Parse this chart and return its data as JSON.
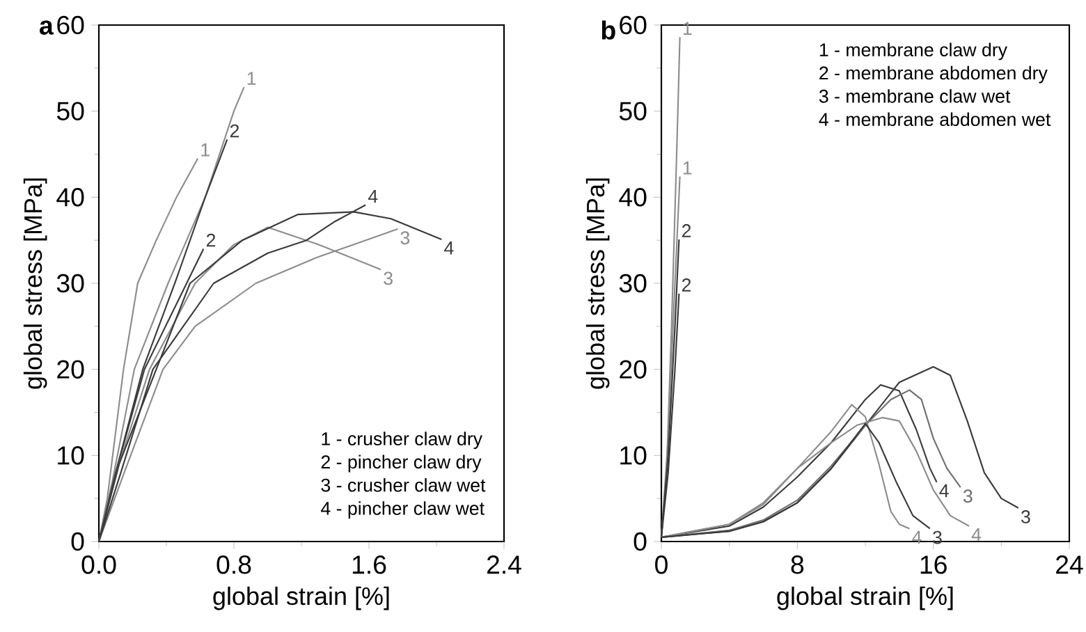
{
  "chart_data": [
    {
      "type": "line",
      "title": "a",
      "xlabel": "global strain [%]",
      "ylabel": "global stress [MPa]",
      "xlim": [
        0,
        2.4
      ],
      "ylim": [
        0,
        60
      ],
      "xticks": [
        {
          "value": 0,
          "label": "0.0"
        },
        {
          "value": 0.8,
          "label": "0.8"
        },
        {
          "value": 1.6,
          "label": "1.6"
        },
        {
          "value": 2.4,
          "label": "2.4"
        }
      ],
      "yticks": [
        0,
        10,
        20,
        30,
        40,
        50,
        60
      ],
      "annotations": [
        "1 - crusher claw dry",
        "2 - pincher claw dry",
        "3 - crusher claw wet",
        "4 - pincher claw wet"
      ],
      "series": [
        {
          "name": "1",
          "color": "#8c8c8c",
          "x": [
            0,
            0.05,
            0.146,
            0.23,
            0.34,
            0.46,
            0.586
          ],
          "values": [
            0,
            5,
            20,
            30,
            35,
            40,
            44.5
          ]
        },
        {
          "name": "1",
          "color": "#8c8c8c",
          "x": [
            0,
            0.08,
            0.21,
            0.41,
            0.63,
            0.8,
            0.86
          ],
          "values": [
            0,
            7,
            20,
            30,
            40,
            50,
            52.8
          ]
        },
        {
          "name": "2",
          "color": "#3a3a3a",
          "x": [
            0,
            0.1,
            0.26,
            0.45,
            0.63,
            0.76
          ],
          "values": [
            0,
            8,
            20,
            30,
            40,
            46.7
          ]
        },
        {
          "name": "2",
          "color": "#3a3a3a",
          "x": [
            0,
            0.1,
            0.27,
            0.52,
            0.62
          ],
          "values": [
            0,
            8,
            20,
            30,
            34
          ]
        },
        {
          "name": "3",
          "color": "#8c8c8c",
          "x": [
            0,
            0.12,
            0.3,
            0.57,
            0.8,
            1.0,
            1.3,
            1.67
          ],
          "values": [
            0,
            9,
            20,
            30,
            34.5,
            36.5,
            34.5,
            31.6
          ]
        },
        {
          "name": "3",
          "color": "#8c8c8c",
          "x": [
            0,
            0.15,
            0.38,
            0.57,
            0.93,
            1.29,
            1.77
          ],
          "values": [
            0,
            8,
            20,
            25,
            30,
            33,
            36.3
          ]
        },
        {
          "name": "4",
          "color": "#3a3a3a",
          "x": [
            0,
            0.12,
            0.54,
            0.85,
            1.18,
            1.51,
            1.73,
            2.03
          ],
          "values": [
            0,
            9,
            30,
            35,
            38,
            38.3,
            37.5,
            35.1
          ]
        },
        {
          "name": "4",
          "color": "#3a3a3a",
          "x": [
            0,
            0.13,
            0.32,
            0.68,
            1.0,
            1.23,
            1.4,
            1.58
          ],
          "values": [
            0,
            8,
            20,
            30,
            33.5,
            35,
            37.2,
            39.1
          ]
        }
      ]
    },
    {
      "type": "line",
      "title": "b",
      "xlabel": "global strain [%]",
      "ylabel": "global stress [MPa]",
      "xlim": [
        0,
        24
      ],
      "ylim": [
        0,
        60
      ],
      "xticks": [
        0,
        8,
        16,
        24
      ],
      "yticks": [
        0,
        10,
        20,
        30,
        40,
        50,
        60
      ],
      "annotations": [
        "1 - membrane claw dry",
        "2 - membrane abdomen dry",
        "3 - membrane claw wet",
        "4 - membrane abdomen wet"
      ],
      "series": [
        {
          "name": "1",
          "color": "#8c8c8c",
          "x": [
            0,
            0.3,
            0.6,
            0.9,
            1.09
          ],
          "values": [
            0.5,
            8,
            25,
            45,
            58.6
          ]
        },
        {
          "name": "1",
          "color": "#8c8c8c",
          "x": [
            0,
            0.4,
            0.8,
            1.09
          ],
          "values": [
            0.5,
            12,
            30,
            42.4
          ]
        },
        {
          "name": "2",
          "color": "#3a3a3a",
          "x": [
            0,
            0.4,
            0.8,
            1.04
          ],
          "values": [
            0.5,
            10,
            25,
            35.1
          ]
        },
        {
          "name": "2",
          "color": "#3a3a3a",
          "x": [
            0,
            0.4,
            0.8,
            1.04
          ],
          "values": [
            0.5,
            8,
            20,
            28.8
          ]
        },
        {
          "name": "3",
          "color": "#3a3a3a",
          "x": [
            0,
            4,
            6,
            8,
            10,
            12,
            14,
            16,
            17,
            18,
            19,
            20,
            21
          ],
          "values": [
            0.5,
            1.2,
            2.3,
            4.5,
            8.5,
            13.5,
            18.5,
            20.3,
            19.3,
            14,
            8,
            5,
            3.9
          ]
        },
        {
          "name": "4",
          "color": "#3a3a3a",
          "x": [
            0,
            4,
            6,
            8,
            10,
            12,
            12.9,
            14,
            15,
            15.8,
            16.2
          ],
          "values": [
            0.5,
            1.8,
            4,
            7.5,
            11.5,
            16.5,
            18.2,
            17.5,
            13,
            8.5,
            6.9
          ]
        },
        {
          "name": "3",
          "color": "#6e6e6e",
          "x": [
            0,
            4,
            6,
            8,
            10,
            12,
            13.5,
            14.6,
            15.3,
            16,
            16.8,
            17.6
          ],
          "values": [
            0.5,
            1.3,
            2.5,
            4.8,
            8.8,
            13.5,
            16.5,
            17.6,
            16.5,
            12,
            8.5,
            6.3
          ]
        },
        {
          "name": "4",
          "color": "#8c8c8c",
          "x": [
            0,
            4,
            6,
            8,
            10,
            11.2,
            12,
            12.8,
            13.5,
            14,
            14.6
          ],
          "values": [
            0.5,
            2,
            4.5,
            8.5,
            12.8,
            15.9,
            14.5,
            9,
            3.5,
            2,
            1.5
          ]
        },
        {
          "name": "4",
          "color": "#8c8c8c",
          "x": [
            0,
            4,
            6,
            8,
            10,
            11.5,
            13,
            14,
            15,
            16,
            17,
            18.1
          ],
          "values": [
            0.5,
            2,
            4.3,
            8.5,
            11.5,
            13.5,
            14.4,
            14,
            10.5,
            6,
            3,
            1.8
          ]
        },
        {
          "name": "3",
          "color": "#3a3a3a",
          "x": [
            0,
            4,
            6,
            8,
            10,
            12,
            12.8,
            13.8,
            14.8,
            15.8
          ],
          "values": [
            0.5,
            1.2,
            2.3,
            4.5,
            8.5,
            13.7,
            11.5,
            7,
            3,
            1.5
          ]
        }
      ]
    }
  ]
}
